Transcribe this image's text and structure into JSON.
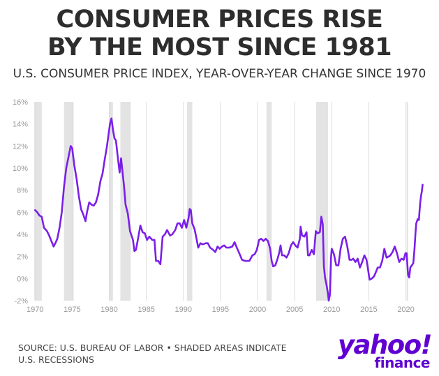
{
  "title": {
    "line1": "CONSUMER PRICES RISE",
    "line2": "BY THE MOST SINCE 1981"
  },
  "subtitle": "U.S. CONSUMER PRICE INDEX, YEAR-OVER-YEAR CHANGE SINCE 1970",
  "footer": {
    "source": "SOURCE: U.S. BUREAU OF LABOR • SHADED AREAS INDICATE U.S. RECESSIONS"
  },
  "logo": {
    "main": "yahoo!",
    "sub": "finance",
    "color": "#6001d2"
  },
  "colors": {
    "line": "#7a1fe8",
    "recession": "#e3e3e3",
    "grid": "#dddddd",
    "ticks": "#999999"
  },
  "chart_data": {
    "type": "line",
    "title": "",
    "xlabel": "",
    "ylabel": "",
    "xlim": [
      1969.6,
      2022.3
    ],
    "ylim": [
      -2,
      16
    ],
    "yticks": [
      16,
      14,
      12,
      10,
      8,
      6,
      4,
      2,
      0,
      -2
    ],
    "ytick_labels": [
      "16%",
      "14%",
      "12%",
      "10%",
      "8%",
      "6%",
      "4%",
      "2%",
      "0%",
      "-2%"
    ],
    "xticks": [
      1970,
      1975,
      1980,
      1985,
      1990,
      1995,
      2000,
      2005,
      2010,
      2015,
      2020
    ],
    "xtick_labels": [
      "1970",
      "1975",
      "1980",
      "1985",
      "1990",
      "1995",
      "2000",
      "2005",
      "2010",
      "2015",
      "2020"
    ],
    "grid": "vertical",
    "recessions": [
      [
        1969.9,
        1970.9
      ],
      [
        1973.9,
        1975.2
      ],
      [
        1980.0,
        1980.5
      ],
      [
        1981.5,
        1982.9
      ],
      [
        1990.5,
        1991.2
      ],
      [
        2001.2,
        2001.9
      ],
      [
        2007.9,
        2009.5
      ],
      [
        2020.1,
        2020.3
      ]
    ],
    "series": [
      {
        "values": [
          [
            1970.0,
            6.2
          ],
          [
            1970.3,
            6.0
          ],
          [
            1970.6,
            5.7
          ],
          [
            1970.9,
            5.6
          ],
          [
            1971.2,
            4.6
          ],
          [
            1971.6,
            4.3
          ],
          [
            1971.9,
            3.9
          ],
          [
            1972.2,
            3.4
          ],
          [
            1972.5,
            2.9
          ],
          [
            1972.8,
            3.3
          ],
          [
            1973.0,
            3.6
          ],
          [
            1973.3,
            4.6
          ],
          [
            1973.6,
            6.0
          ],
          [
            1973.9,
            8.3
          ],
          [
            1974.2,
            10.0
          ],
          [
            1974.5,
            11.0
          ],
          [
            1974.8,
            12.0
          ],
          [
            1975.0,
            11.8
          ],
          [
            1975.3,
            10.2
          ],
          [
            1975.6,
            9.0
          ],
          [
            1975.9,
            7.5
          ],
          [
            1976.2,
            6.3
          ],
          [
            1976.5,
            5.8
          ],
          [
            1976.8,
            5.2
          ],
          [
            1977.0,
            6.0
          ],
          [
            1977.3,
            6.9
          ],
          [
            1977.6,
            6.7
          ],
          [
            1977.9,
            6.6
          ],
          [
            1978.2,
            6.9
          ],
          [
            1978.5,
            7.6
          ],
          [
            1978.8,
            8.8
          ],
          [
            1979.1,
            9.5
          ],
          [
            1979.4,
            10.8
          ],
          [
            1979.7,
            12.0
          ],
          [
            1979.9,
            13.0
          ],
          [
            1980.1,
            14.0
          ],
          [
            1980.3,
            14.5
          ],
          [
            1980.5,
            13.5
          ],
          [
            1980.7,
            12.7
          ],
          [
            1980.9,
            12.5
          ],
          [
            1981.2,
            10.7
          ],
          [
            1981.4,
            9.6
          ],
          [
            1981.6,
            10.9
          ],
          [
            1981.8,
            9.6
          ],
          [
            1982.0,
            8.3
          ],
          [
            1982.2,
            6.7
          ],
          [
            1982.5,
            5.9
          ],
          [
            1982.8,
            4.3
          ],
          [
            1983.0,
            3.9
          ],
          [
            1983.2,
            3.5
          ],
          [
            1983.4,
            2.5
          ],
          [
            1983.6,
            2.6
          ],
          [
            1983.9,
            3.7
          ],
          [
            1984.2,
            4.8
          ],
          [
            1984.5,
            4.2
          ],
          [
            1984.8,
            4.1
          ],
          [
            1985.1,
            3.5
          ],
          [
            1985.4,
            3.8
          ],
          [
            1985.8,
            3.5
          ],
          [
            1986.1,
            3.5
          ],
          [
            1986.3,
            1.6
          ],
          [
            1986.6,
            1.6
          ],
          [
            1986.9,
            1.3
          ],
          [
            1987.2,
            3.8
          ],
          [
            1987.5,
            4.0
          ],
          [
            1987.8,
            4.4
          ],
          [
            1988.2,
            3.9
          ],
          [
            1988.5,
            4.0
          ],
          [
            1988.9,
            4.4
          ],
          [
            1989.2,
            5.0
          ],
          [
            1989.5,
            5.0
          ],
          [
            1989.8,
            4.6
          ],
          [
            1990.1,
            5.3
          ],
          [
            1990.4,
            4.6
          ],
          [
            1990.7,
            5.5
          ],
          [
            1990.85,
            6.3
          ],
          [
            1991.0,
            6.2
          ],
          [
            1991.2,
            5.0
          ],
          [
            1991.5,
            4.5
          ],
          [
            1991.8,
            3.5
          ],
          [
            1992.0,
            2.8
          ],
          [
            1992.3,
            3.2
          ],
          [
            1992.6,
            3.1
          ],
          [
            1993.0,
            3.2
          ],
          [
            1993.3,
            3.2
          ],
          [
            1993.6,
            2.8
          ],
          [
            1994.0,
            2.6
          ],
          [
            1994.3,
            2.4
          ],
          [
            1994.6,
            2.9
          ],
          [
            1994.9,
            2.7
          ],
          [
            1995.2,
            2.9
          ],
          [
            1995.5,
            3.0
          ],
          [
            1995.8,
            2.8
          ],
          [
            1996.2,
            2.8
          ],
          [
            1996.6,
            2.9
          ],
          [
            1996.9,
            3.3
          ],
          [
            1997.2,
            2.8
          ],
          [
            1997.6,
            2.2
          ],
          [
            1997.9,
            1.7
          ],
          [
            1998.3,
            1.6
          ],
          [
            1998.6,
            1.6
          ],
          [
            1998.9,
            1.6
          ],
          [
            1999.3,
            2.1
          ],
          [
            1999.6,
            2.2
          ],
          [
            1999.9,
            2.6
          ],
          [
            2000.2,
            3.5
          ],
          [
            2000.5,
            3.6
          ],
          [
            2000.8,
            3.4
          ],
          [
            2001.1,
            3.6
          ],
          [
            2001.4,
            3.4
          ],
          [
            2001.7,
            2.7
          ],
          [
            2001.9,
            1.6
          ],
          [
            2002.1,
            1.1
          ],
          [
            2002.4,
            1.2
          ],
          [
            2002.7,
            1.8
          ],
          [
            2002.9,
            2.3
          ],
          [
            2003.1,
            3.0
          ],
          [
            2003.3,
            2.1
          ],
          [
            2003.6,
            2.1
          ],
          [
            2003.9,
            1.9
          ],
          [
            2004.2,
            2.3
          ],
          [
            2004.5,
            3.0
          ],
          [
            2004.8,
            3.3
          ],
          [
            2005.1,
            3.0
          ],
          [
            2005.4,
            2.8
          ],
          [
            2005.7,
            3.6
          ],
          [
            2005.8,
            4.7
          ],
          [
            2006.0,
            3.9
          ],
          [
            2006.3,
            3.8
          ],
          [
            2006.6,
            4.2
          ],
          [
            2006.8,
            2.1
          ],
          [
            2007.0,
            2.1
          ],
          [
            2007.3,
            2.6
          ],
          [
            2007.6,
            2.2
          ],
          [
            2007.85,
            4.3
          ],
          [
            2008.1,
            4.1
          ],
          [
            2008.4,
            4.2
          ],
          [
            2008.6,
            5.6
          ],
          [
            2008.8,
            4.9
          ],
          [
            2008.95,
            1.1
          ],
          [
            2009.1,
            0.1
          ],
          [
            2009.3,
            -0.6
          ],
          [
            2009.5,
            -1.4
          ],
          [
            2009.6,
            -2.0
          ],
          [
            2009.75,
            -1.5
          ],
          [
            2009.9,
            1.8
          ],
          [
            2010.0,
            2.7
          ],
          [
            2010.3,
            2.2
          ],
          [
            2010.6,
            1.2
          ],
          [
            2010.9,
            1.2
          ],
          [
            2011.2,
            2.7
          ],
          [
            2011.5,
            3.6
          ],
          [
            2011.8,
            3.8
          ],
          [
            2012.1,
            2.9
          ],
          [
            2012.4,
            1.7
          ],
          [
            2012.7,
            1.7
          ],
          [
            2012.9,
            1.8
          ],
          [
            2013.2,
            1.5
          ],
          [
            2013.5,
            1.8
          ],
          [
            2013.8,
            1.0
          ],
          [
            2014.1,
            1.5
          ],
          [
            2014.4,
            2.1
          ],
          [
            2014.7,
            1.7
          ],
          [
            2014.9,
            0.8
          ],
          [
            2015.1,
            -0.1
          ],
          [
            2015.4,
            0.0
          ],
          [
            2015.7,
            0.2
          ],
          [
            2015.9,
            0.5
          ],
          [
            2016.2,
            1.0
          ],
          [
            2016.5,
            1.0
          ],
          [
            2016.8,
            1.6
          ],
          [
            2017.1,
            2.7
          ],
          [
            2017.4,
            1.9
          ],
          [
            2017.7,
            2.0
          ],
          [
            2017.9,
            2.1
          ],
          [
            2018.2,
            2.4
          ],
          [
            2018.5,
            2.9
          ],
          [
            2018.8,
            2.3
          ],
          [
            2019.1,
            1.5
          ],
          [
            2019.4,
            1.8
          ],
          [
            2019.7,
            1.7
          ],
          [
            2019.95,
            2.3
          ],
          [
            2020.1,
            2.3
          ],
          [
            2020.3,
            0.3
          ],
          [
            2020.45,
            0.1
          ],
          [
            2020.6,
            1.0
          ],
          [
            2020.8,
            1.2
          ],
          [
            2021.0,
            1.4
          ],
          [
            2021.15,
            2.6
          ],
          [
            2021.3,
            4.2
          ],
          [
            2021.4,
            5.0
          ],
          [
            2021.6,
            5.4
          ],
          [
            2021.75,
            5.3
          ],
          [
            2021.85,
            6.2
          ],
          [
            2021.95,
            7.0
          ],
          [
            2022.05,
            7.5
          ],
          [
            2022.15,
            7.9
          ],
          [
            2022.25,
            8.5
          ]
        ]
      }
    ]
  }
}
